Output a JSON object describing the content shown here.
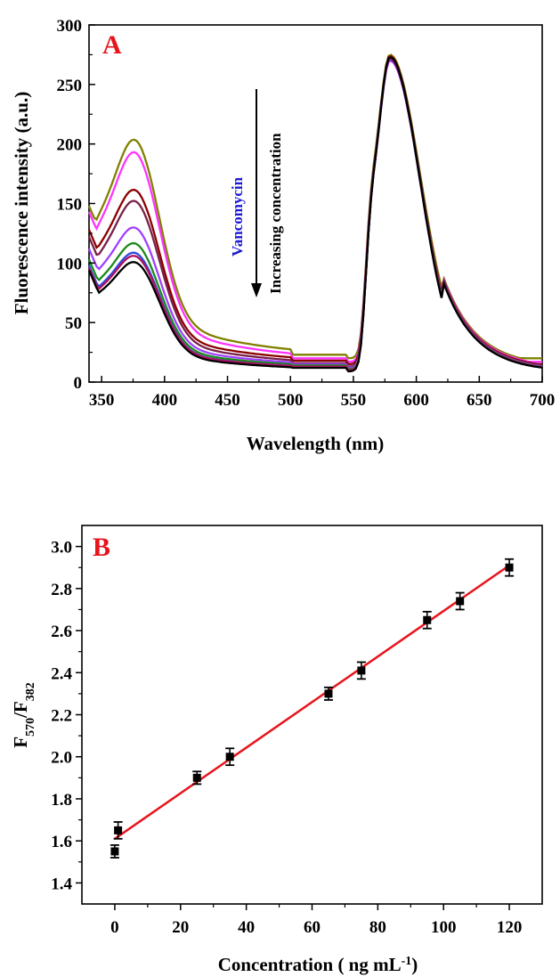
{
  "chart_data": [
    {
      "type": "line",
      "panel_label": "A",
      "xlabel": "Wavelength (nm)",
      "ylabel": "Fluorescence intensity (a.u.)",
      "xlim": [
        340,
        700
      ],
      "ylim": [
        0,
        300
      ],
      "xticks": [
        350,
        400,
        450,
        500,
        550,
        600,
        650,
        700
      ],
      "yticks": [
        0,
        50,
        100,
        150,
        200,
        250,
        300
      ],
      "grid": false,
      "annotations": {
        "analyte": "Vancomycin",
        "arrow_text": "Increasing concentration"
      },
      "colors": {
        "panel_label": "#e8141c",
        "analyte": "#1a1ad6"
      },
      "series": [
        {
          "color": "#808000",
          "peak382": 176,
          "base_left": 148,
          "floor": 20,
          "peak580": 275
        },
        {
          "color": "#ff33ff",
          "peak382": 168,
          "base_left": 143,
          "floor": 17,
          "peak580": 270
        },
        {
          "color": "#8b0000",
          "peak382": 144,
          "base_left": 128,
          "floor": 15,
          "peak580": 274
        },
        {
          "color": "#7a1f4a",
          "peak382": 137,
          "base_left": 122,
          "floor": 13,
          "peak580": 273
        },
        {
          "color": "#a040ff",
          "peak382": 120,
          "base_left": 112,
          "floor": 12,
          "peak580": 272
        },
        {
          "color": "#1a8a1a",
          "peak382": 110,
          "base_left": 103,
          "floor": 11,
          "peak580": 273
        },
        {
          "color": "#2a4ae0",
          "peak382": 104,
          "base_left": 98,
          "floor": 10,
          "peak580": 271
        },
        {
          "color": "#b01060",
          "peak382": 102,
          "base_left": 96,
          "floor": 10,
          "peak580": 272
        },
        {
          "color": "#000000",
          "peak382": 98,
          "base_left": 94,
          "floor": 9,
          "peak580": 273
        }
      ]
    },
    {
      "type": "scatter",
      "panel_label": "B",
      "xlabel": "Concentration ( ng mL-1)",
      "ylabel": "F570/F382",
      "xlim": [
        -10,
        130
      ],
      "ylim": [
        1.3,
        3.1
      ],
      "xticks": [
        0,
        20,
        40,
        60,
        80,
        100,
        120
      ],
      "yticks": [
        1.4,
        1.6,
        1.8,
        2.0,
        2.2,
        2.4,
        2.6,
        2.8,
        3.0
      ],
      "grid": false,
      "points": [
        {
          "x": 0,
          "y": 1.55,
          "err": 0.03
        },
        {
          "x": 1,
          "y": 1.65,
          "err": 0.04
        },
        {
          "x": 25,
          "y": 1.9,
          "err": 0.03
        },
        {
          "x": 35,
          "y": 2.0,
          "err": 0.04
        },
        {
          "x": 65,
          "y": 2.3,
          "err": 0.03
        },
        {
          "x": 75,
          "y": 2.41,
          "err": 0.04
        },
        {
          "x": 95,
          "y": 2.65,
          "err": 0.04
        },
        {
          "x": 105,
          "y": 2.74,
          "err": 0.04
        },
        {
          "x": 120,
          "y": 2.9,
          "err": 0.04
        }
      ],
      "fit_line": {
        "x": [
          0,
          120
        ],
        "y": [
          1.61,
          2.91
        ],
        "color": "#e8141c"
      },
      "colors": {
        "panel_label": "#e8141c",
        "points": "#000000"
      }
    }
  ]
}
